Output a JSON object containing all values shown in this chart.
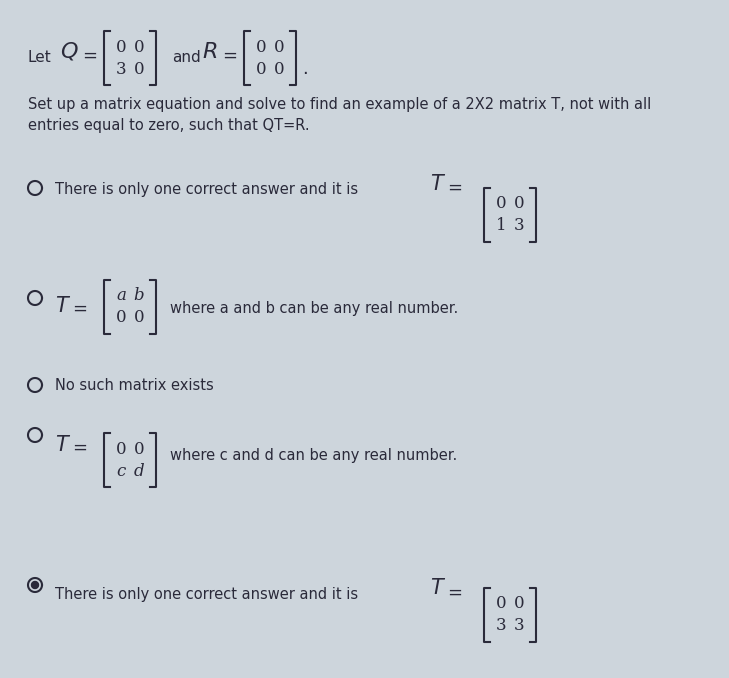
{
  "bg_color": "#cdd5dc",
  "text_color": "#2a2a3a",
  "radio_color": "#4a4a5a",
  "selected_fill": "#2a2a3a",
  "font_size_body": 10.5,
  "font_size_math_large": 15,
  "font_size_math_small": 11,
  "font_size_header_text": 11,
  "header": {
    "let_text": "Let",
    "Q_matrix": [
      [
        "0",
        "0"
      ],
      [
        "3",
        "0"
      ]
    ],
    "R_matrix": [
      [
        "0",
        "0"
      ],
      [
        "0",
        "0"
      ]
    ]
  },
  "body_text1": "Set up a matrix equation and solve to find an example of a 2X2 matrix T, not with all",
  "body_text2": "entries equal to zero, such that QT=R.",
  "options": [
    {
      "id": 1,
      "radio_filled": false,
      "indent_text": true,
      "text": "There is only one correct answer and it is ",
      "show_T_eq_matrix": true,
      "matrix": [
        [
          "0",
          "0"
        ],
        [
          "1",
          "3"
        ]
      ],
      "extra_text": null,
      "show_T_eq_before_matrix": false
    },
    {
      "id": 2,
      "radio_filled": false,
      "indent_text": false,
      "text": null,
      "show_T_eq_matrix": false,
      "matrix": [
        [
          "a",
          "b"
        ],
        [
          "0",
          "0"
        ]
      ],
      "extra_text": "where a and b can be any real number.",
      "show_T_eq_before_matrix": true
    },
    {
      "id": 3,
      "radio_filled": false,
      "indent_text": false,
      "text": "No such matrix exists",
      "show_T_eq_matrix": false,
      "matrix": null,
      "extra_text": null,
      "show_T_eq_before_matrix": false
    },
    {
      "id": 4,
      "radio_filled": false,
      "indent_text": false,
      "text": null,
      "show_T_eq_matrix": false,
      "matrix": [
        [
          "0",
          "0"
        ],
        [
          "c",
          "d"
        ]
      ],
      "extra_text": "where c and d can be any real number.",
      "show_T_eq_before_matrix": true
    },
    {
      "id": 5,
      "radio_filled": true,
      "indent_text": true,
      "text": "There is only one correct answer and it is ",
      "show_T_eq_matrix": true,
      "matrix": [
        [
          "0",
          "0"
        ],
        [
          "3",
          "3"
        ]
      ],
      "extra_text": null,
      "show_T_eq_before_matrix": false
    }
  ]
}
